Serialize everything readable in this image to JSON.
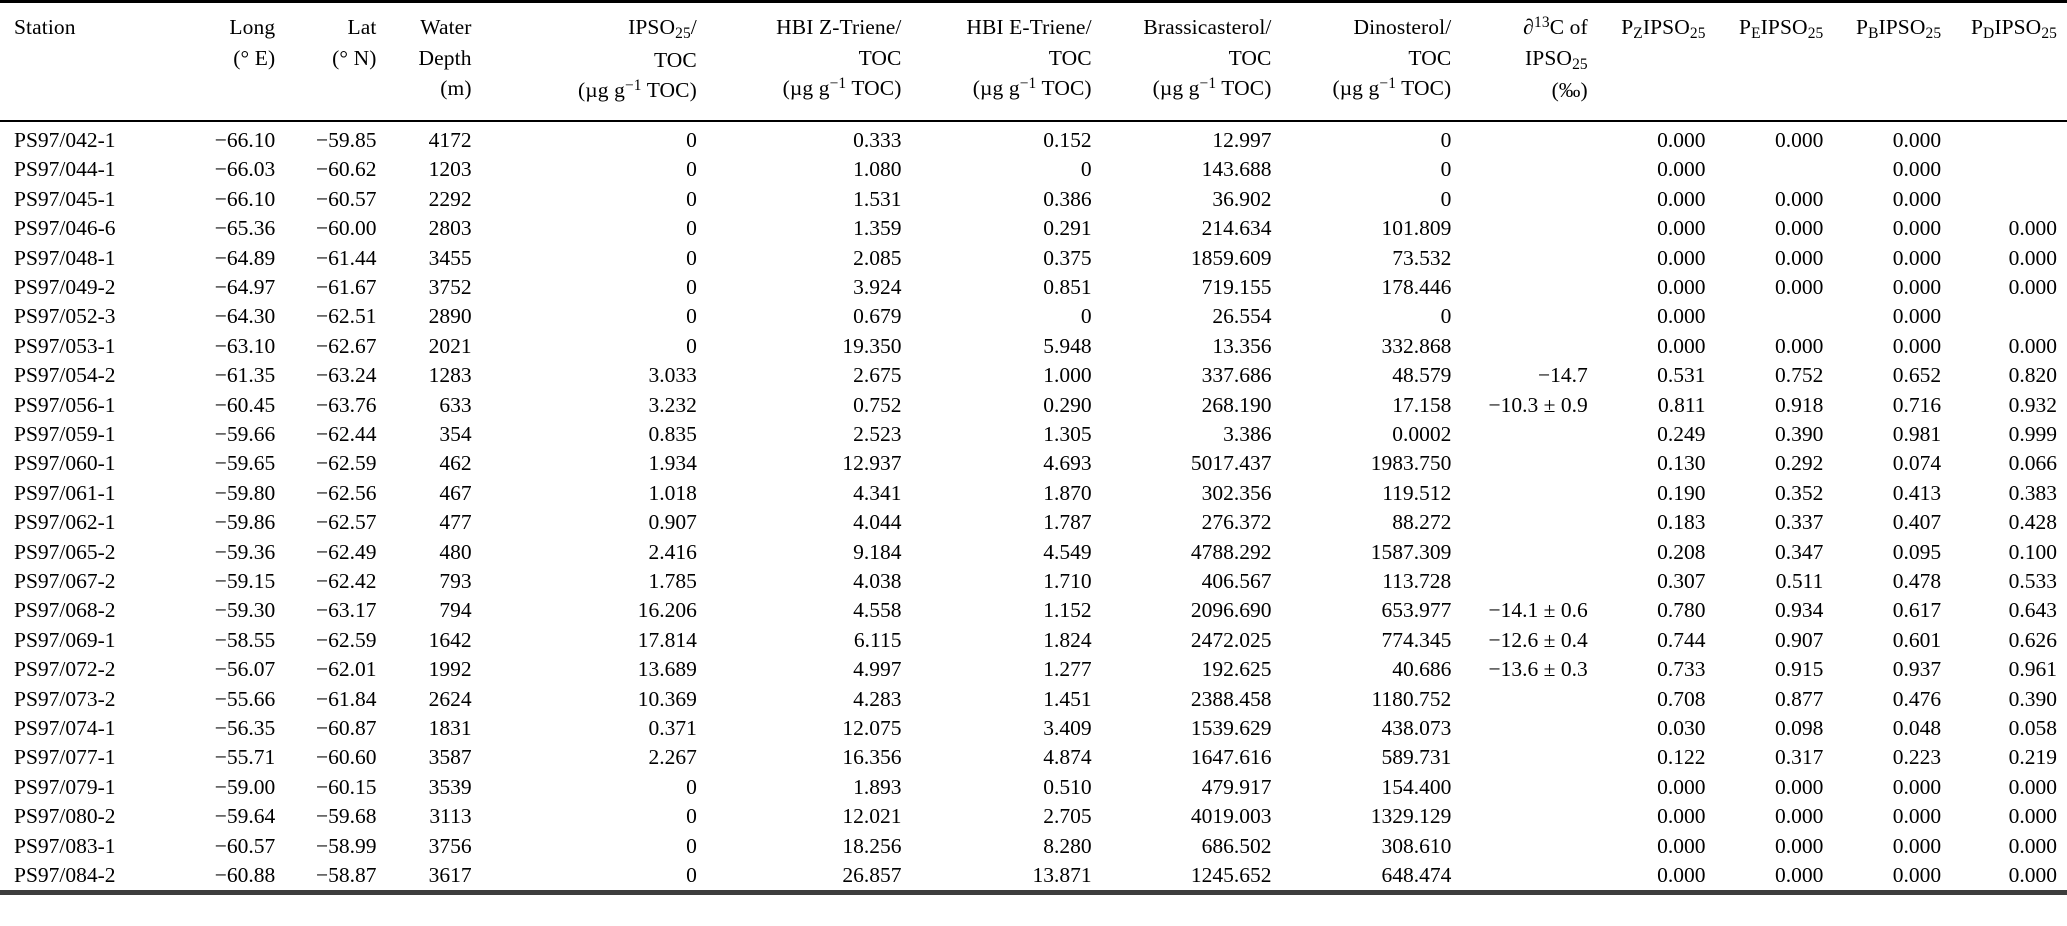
{
  "page": {
    "background_color": "#ffffff",
    "text_color": "#000000"
  },
  "table": {
    "columns": [
      {
        "id": "station",
        "label_html": "Station",
        "align": "left"
      },
      {
        "id": "long",
        "label_html": "Long<br>(&deg; E)",
        "align": "right"
      },
      {
        "id": "lat",
        "label_html": "Lat<br>(&deg; N)",
        "align": "right"
      },
      {
        "id": "water-depth",
        "label_html": "Water<br>Depth<br>(m)",
        "align": "right"
      },
      {
        "id": "ipso25-toc",
        "label_html": "IPSO<sub>25</sub>/<br>TOC<br>(&micro;g g<sup>&minus;1</sup> TOC)",
        "align": "right"
      },
      {
        "id": "hbi-z-triene-toc",
        "label_html": "HBI Z-Triene/<br>TOC<br>(&micro;g g<sup>&minus;1</sup> TOC)",
        "align": "right"
      },
      {
        "id": "hbi-e-triene-toc",
        "label_html": "HBI E-Triene/<br>TOC<br>(&micro;g g<sup>&minus;1</sup> TOC)",
        "align": "right"
      },
      {
        "id": "brassicasterol-toc",
        "label_html": "Brassicasterol/<br>TOC<br>(&micro;g g<sup>&minus;1</sup> TOC)",
        "align": "right"
      },
      {
        "id": "dinosterol-toc",
        "label_html": "Dinosterol/<br>TOC<br>(&micro;g g<sup>&minus;1</sup> TOC)",
        "align": "right"
      },
      {
        "id": "d13c-of-ipso25",
        "label_html": "&#8706;<sup>13</sup>C of<br>IPSO<sub>25</sub><br>(&permil;)",
        "align": "right"
      },
      {
        "id": "pz-ipso25",
        "label_html": "P<sub>Z</sub>IPSO<sub>25</sub>",
        "align": "right"
      },
      {
        "id": "pe-ipso25",
        "label_html": "P<sub>E</sub>IPSO<sub>25</sub>",
        "align": "right"
      },
      {
        "id": "pb-ipso25",
        "label_html": "P<sub>B</sub>IPSO<sub>25</sub>",
        "align": "right"
      },
      {
        "id": "pd-ipso25",
        "label_html": "P<sub>D</sub>IPSO<sub>25</sub>",
        "align": "right"
      }
    ],
    "rows": [
      [
        "PS97/042-1",
        "−66.10",
        "−59.85",
        "4172",
        "0",
        "0.333",
        "0.152",
        "12.997",
        "0",
        "",
        "0.000",
        "0.000",
        "0.000",
        ""
      ],
      [
        "PS97/044-1",
        "−66.03",
        "−60.62",
        "1203",
        "0",
        "1.080",
        "0",
        "143.688",
        "0",
        "",
        "0.000",
        "",
        "0.000",
        ""
      ],
      [
        "PS97/045-1",
        "−66.10",
        "−60.57",
        "2292",
        "0",
        "1.531",
        "0.386",
        "36.902",
        "0",
        "",
        "0.000",
        "0.000",
        "0.000",
        ""
      ],
      [
        "PS97/046-6",
        "−65.36",
        "−60.00",
        "2803",
        "0",
        "1.359",
        "0.291",
        "214.634",
        "101.809",
        "",
        "0.000",
        "0.000",
        "0.000",
        "0.000"
      ],
      [
        "PS97/048-1",
        "−64.89",
        "−61.44",
        "3455",
        "0",
        "2.085",
        "0.375",
        "1859.609",
        "73.532",
        "",
        "0.000",
        "0.000",
        "0.000",
        "0.000"
      ],
      [
        "PS97/049-2",
        "−64.97",
        "−61.67",
        "3752",
        "0",
        "3.924",
        "0.851",
        "719.155",
        "178.446",
        "",
        "0.000",
        "0.000",
        "0.000",
        "0.000"
      ],
      [
        "PS97/052-3",
        "−64.30",
        "−62.51",
        "2890",
        "0",
        "0.679",
        "0",
        "26.554",
        "0",
        "",
        "0.000",
        "",
        "0.000",
        ""
      ],
      [
        "PS97/053-1",
        "−63.10",
        "−62.67",
        "2021",
        "0",
        "19.350",
        "5.948",
        "13.356",
        "332.868",
        "",
        "0.000",
        "0.000",
        "0.000",
        "0.000"
      ],
      [
        "PS97/054-2",
        "−61.35",
        "−63.24",
        "1283",
        "3.033",
        "2.675",
        "1.000",
        "337.686",
        "48.579",
        "−14.7",
        "0.531",
        "0.752",
        "0.652",
        "0.820"
      ],
      [
        "PS97/056-1",
        "−60.45",
        "−63.76",
        "633",
        "3.232",
        "0.752",
        "0.290",
        "268.190",
        "17.158",
        "−10.3 ± 0.9",
        "0.811",
        "0.918",
        "0.716",
        "0.932"
      ],
      [
        "PS97/059-1",
        "−59.66",
        "−62.44",
        "354",
        "0.835",
        "2.523",
        "1.305",
        "3.386",
        "0.0002",
        "",
        "0.249",
        "0.390",
        "0.981",
        "0.999"
      ],
      [
        "PS97/060-1",
        "−59.65",
        "−62.59",
        "462",
        "1.934",
        "12.937",
        "4.693",
        "5017.437",
        "1983.750",
        "",
        "0.130",
        "0.292",
        "0.074",
        "0.066"
      ],
      [
        "PS97/061-1",
        "−59.80",
        "−62.56",
        "467",
        "1.018",
        "4.341",
        "1.870",
        "302.356",
        "119.512",
        "",
        "0.190",
        "0.352",
        "0.413",
        "0.383"
      ],
      [
        "PS97/062-1",
        "−59.86",
        "−62.57",
        "477",
        "0.907",
        "4.044",
        "1.787",
        "276.372",
        "88.272",
        "",
        "0.183",
        "0.337",
        "0.407",
        "0.428"
      ],
      [
        "PS97/065-2",
        "−59.36",
        "−62.49",
        "480",
        "2.416",
        "9.184",
        "4.549",
        "4788.292",
        "1587.309",
        "",
        "0.208",
        "0.347",
        "0.095",
        "0.100"
      ],
      [
        "PS97/067-2",
        "−59.15",
        "−62.42",
        "793",
        "1.785",
        "4.038",
        "1.710",
        "406.567",
        "113.728",
        "",
        "0.307",
        "0.511",
        "0.478",
        "0.533"
      ],
      [
        "PS97/068-2",
        "−59.30",
        "−63.17",
        "794",
        "16.206",
        "4.558",
        "1.152",
        "2096.690",
        "653.977",
        "−14.1 ± 0.6",
        "0.780",
        "0.934",
        "0.617",
        "0.643"
      ],
      [
        "PS97/069-1",
        "−58.55",
        "−62.59",
        "1642",
        "17.814",
        "6.115",
        "1.824",
        "2472.025",
        "774.345",
        "−12.6 ± 0.4",
        "0.744",
        "0.907",
        "0.601",
        "0.626"
      ],
      [
        "PS97/072-2",
        "−56.07",
        "−62.01",
        "1992",
        "13.689",
        "4.997",
        "1.277",
        "192.625",
        "40.686",
        "−13.6 ± 0.3",
        "0.733",
        "0.915",
        "0.937",
        "0.961"
      ],
      [
        "PS97/073-2",
        "−55.66",
        "−61.84",
        "2624",
        "10.369",
        "4.283",
        "1.451",
        "2388.458",
        "1180.752",
        "",
        "0.708",
        "0.877",
        "0.476",
        "0.390"
      ],
      [
        "PS97/074-1",
        "−56.35",
        "−60.87",
        "1831",
        "0.371",
        "12.075",
        "3.409",
        "1539.629",
        "438.073",
        "",
        "0.030",
        "0.098",
        "0.048",
        "0.058"
      ],
      [
        "PS97/077-1",
        "−55.71",
        "−60.60",
        "3587",
        "2.267",
        "16.356",
        "4.874",
        "1647.616",
        "589.731",
        "",
        "0.122",
        "0.317",
        "0.223",
        "0.219"
      ],
      [
        "PS97/079-1",
        "−59.00",
        "−60.15",
        "3539",
        "0",
        "1.893",
        "0.510",
        "479.917",
        "154.400",
        "",
        "0.000",
        "0.000",
        "0.000",
        "0.000"
      ],
      [
        "PS97/080-2",
        "−59.64",
        "−59.68",
        "3113",
        "0",
        "12.021",
        "2.705",
        "4019.003",
        "1329.129",
        "",
        "0.000",
        "0.000",
        "0.000",
        "0.000"
      ],
      [
        "PS97/083-1",
        "−60.57",
        "−58.99",
        "3756",
        "0",
        "18.256",
        "8.280",
        "686.502",
        "308.610",
        "",
        "0.000",
        "0.000",
        "0.000",
        "0.000"
      ],
      [
        "PS97/084-2",
        "−60.88",
        "−58.87",
        "3617",
        "0",
        "26.857",
        "13.871",
        "1245.652",
        "648.474",
        "",
        "0.000",
        "0.000",
        "0.000",
        "0.000"
      ]
    ]
  }
}
